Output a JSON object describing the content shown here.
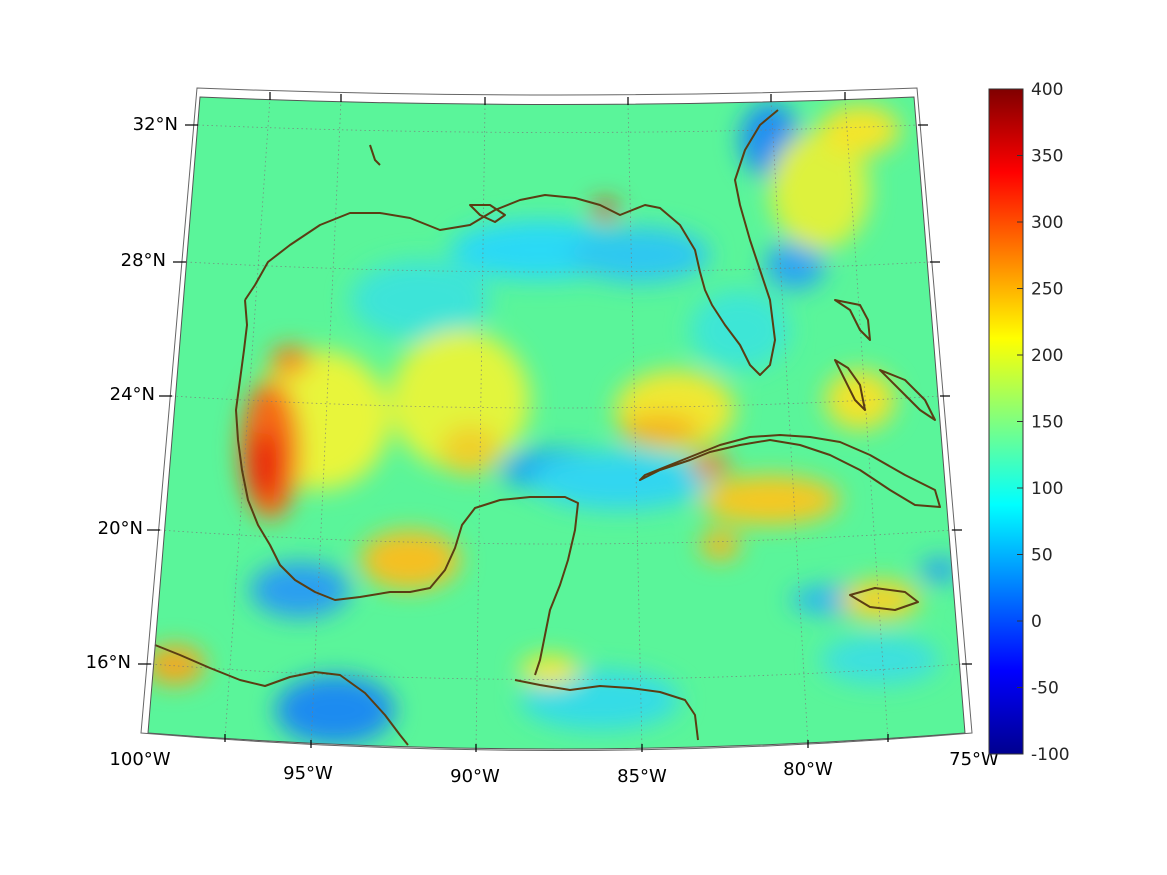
{
  "map": {
    "projection": "conic",
    "lon_range": [
      -100,
      -75
    ],
    "lat_range": [
      14,
      33
    ],
    "graticule": "dotted",
    "coastline_color": "#5a3d13",
    "field": "gridded scalar field over Gulf of Mexico and Caribbean"
  },
  "axes": {
    "lon_ticks": [
      "100°W",
      "95°W",
      "90°W",
      "85°W",
      "80°W",
      "75°W"
    ],
    "lat_ticks": [
      "32°N",
      "28°N",
      "24°N",
      "20°N",
      "16°N"
    ]
  },
  "colorbar": {
    "colormap": "jet",
    "min": -100,
    "max": 400,
    "tick_labels": [
      "400",
      "350",
      "300",
      "250",
      "200",
      "150",
      "100",
      "50",
      "0",
      "-50",
      "-100"
    ]
  }
}
